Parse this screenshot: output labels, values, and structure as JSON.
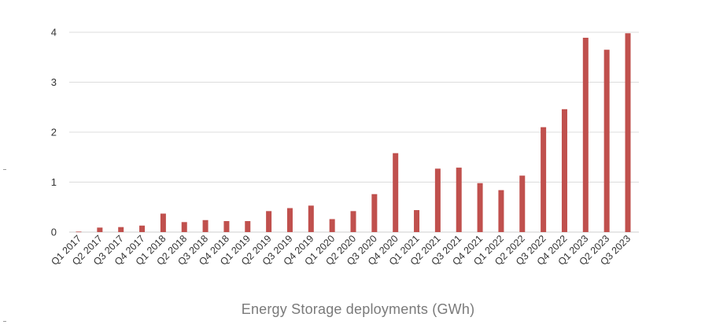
{
  "chart_data": {
    "type": "bar",
    "title": "Energy Storage deployments (GWh)",
    "xlabel": "",
    "ylabel": "",
    "categories": [
      "Q1 2017",
      "Q2 2017",
      "Q3 2017",
      "Q4 2017",
      "Q1 2018",
      "Q2 2018",
      "Q3 2018",
      "Q4 2018",
      "Q1 2019",
      "Q2 2019",
      "Q3 2019",
      "Q4 2019",
      "Q1 2020",
      "Q2 2020",
      "Q3 2020",
      "Q4 2020",
      "Q1 2021",
      "Q2 2021",
      "Q3 2021",
      "Q4 2021",
      "Q1 2022",
      "Q2 2022",
      "Q3 2022",
      "Q4 2022",
      "Q1 2023",
      "Q2 2023",
      "Q3 2023"
    ],
    "values": [
      0.01,
      0.09,
      0.1,
      0.13,
      0.37,
      0.2,
      0.24,
      0.22,
      0.22,
      0.42,
      0.48,
      0.53,
      0.26,
      0.42,
      0.76,
      1.58,
      0.44,
      1.27,
      1.29,
      0.98,
      0.84,
      1.13,
      2.1,
      2.46,
      3.89,
      3.65,
      3.98
    ],
    "yticks": [
      0,
      1,
      2,
      3,
      4
    ],
    "ylim": [
      0,
      4.3
    ],
    "grid": true,
    "legend": "none",
    "bar_color": "#c0504d"
  }
}
